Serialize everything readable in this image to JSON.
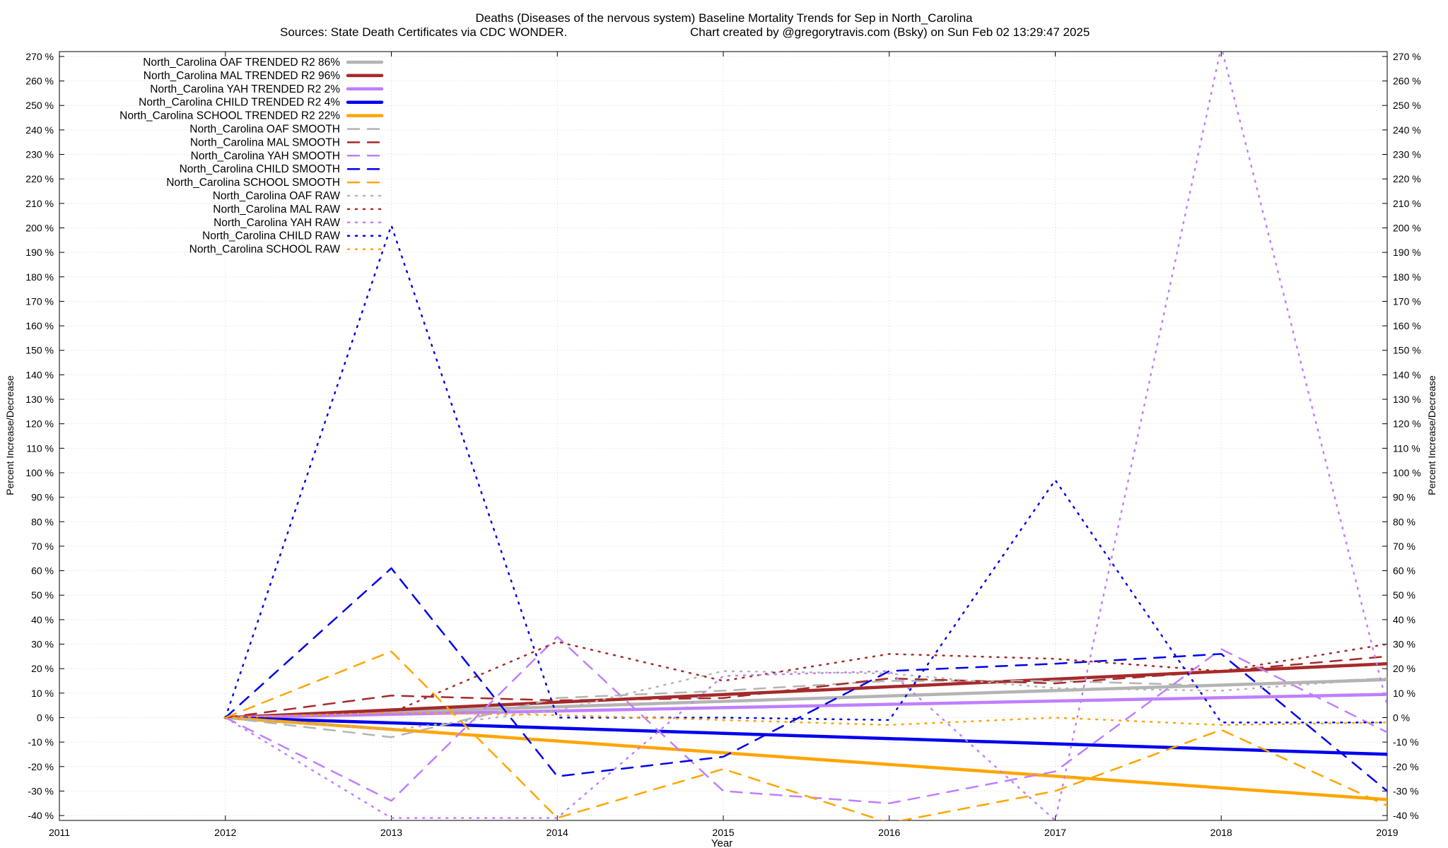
{
  "chart_data": {
    "type": "line",
    "title": "Deaths (Diseases of the nervous system)  Baseline Mortality Trends for Sep in North_Carolina",
    "subtitle_left": "Sources: State Death Certificates via CDC WONDER.",
    "subtitle_right": "Chart created by @gregorytravis.com (Bsky) on Sun Feb 02 13:29:47 2025",
    "xlabel": "Year",
    "ylabel_left": "Percent Increase/Decrease",
    "ylabel_right": "Percent Increase/Decrease",
    "xlim": [
      2011,
      2019
    ],
    "ylim": [
      -42,
      272
    ],
    "x_ticks": [
      2011,
      2012,
      2013,
      2014,
      2015,
      2016,
      2017,
      2018,
      2019
    ],
    "y_ticks": [
      -40,
      -30,
      -20,
      -10,
      0,
      10,
      20,
      30,
      40,
      50,
      60,
      70,
      80,
      90,
      100,
      110,
      120,
      130,
      140,
      150,
      160,
      170,
      180,
      190,
      200,
      210,
      220,
      230,
      240,
      250,
      260,
      270
    ],
    "y_tick_suffix": " %",
    "grid": true,
    "legend_position": "top-left",
    "series": [
      {
        "name": "North_Carolina OAF TRENDED R2  86%",
        "color": "#b4b4b4",
        "style": "solid",
        "x": [
          2012,
          2019
        ],
        "values": [
          0,
          15.5
        ]
      },
      {
        "name": "North_Carolina MAL TRENDED R2  96%",
        "color": "#a52a2a",
        "style": "solid",
        "x": [
          2012,
          2019
        ],
        "values": [
          0,
          22
        ]
      },
      {
        "name": "North_Carolina YAH TRENDED R2   2%",
        "color": "#bf7fff",
        "style": "solid",
        "x": [
          2012,
          2019
        ],
        "values": [
          0,
          9.5
        ]
      },
      {
        "name": "North_Carolina CHILD TRENDED R2   4%",
        "color": "#0000ee",
        "style": "solid",
        "x": [
          2012,
          2019
        ],
        "values": [
          0,
          -15
        ]
      },
      {
        "name": "North_Carolina SCHOOL TRENDED R2  22%",
        "color": "#ffa500",
        "style": "solid",
        "x": [
          2012,
          2019
        ],
        "values": [
          0,
          -33.5
        ]
      },
      {
        "name": "North_Carolina OAF SMOOTH",
        "color": "#b4b4b4",
        "style": "dash",
        "x": [
          2012,
          2013,
          2014,
          2015,
          2016,
          2017,
          2018,
          2019
        ],
        "values": [
          0,
          -8,
          8,
          11,
          15,
          15,
          13,
          16
        ]
      },
      {
        "name": "North_Carolina MAL SMOOTH",
        "color": "#a52a2a",
        "style": "dash",
        "x": [
          2012,
          2013,
          2014,
          2015,
          2016,
          2017,
          2018,
          2019
        ],
        "values": [
          0,
          9,
          7,
          8,
          16,
          14,
          19,
          25
        ]
      },
      {
        "name": "North_Carolina YAH SMOOTH",
        "color": "#bf7fff",
        "style": "dash",
        "x": [
          2012,
          2013,
          2014,
          2015,
          2016,
          2017,
          2018,
          2019
        ],
        "values": [
          0,
          -34,
          33,
          -30,
          -35,
          -22,
          28,
          -6
        ]
      },
      {
        "name": "North_Carolina CHILD SMOOTH",
        "color": "#0000ee",
        "style": "dash",
        "x": [
          2012,
          2013,
          2014,
          2015,
          2016,
          2017,
          2018,
          2019
        ],
        "values": [
          0,
          61,
          -24,
          -16,
          19,
          22,
          26,
          -30
        ]
      },
      {
        "name": "North_Carolina SCHOOL SMOOTH",
        "color": "#ffa500",
        "style": "dash",
        "x": [
          2012,
          2013,
          2014,
          2015,
          2016,
          2017,
          2018,
          2019
        ],
        "values": [
          0,
          27,
          -41,
          -21,
          -43,
          -30,
          -5,
          -36
        ]
      },
      {
        "name": "North_Carolina OAF RAW",
        "color": "#b4b4b4",
        "style": "dot",
        "x": [
          2012,
          2013,
          2014,
          2015,
          2016,
          2017,
          2018,
          2019
        ],
        "values": [
          0,
          -5,
          3,
          19,
          18,
          12,
          11,
          16
        ]
      },
      {
        "name": "North_Carolina MAL RAW",
        "color": "#a52a2a",
        "style": "dot",
        "x": [
          2012,
          2013,
          2014,
          2015,
          2016,
          2017,
          2018,
          2019
        ],
        "values": [
          0,
          2,
          31,
          15,
          26,
          24,
          19,
          30
        ]
      },
      {
        "name": "North_Carolina YAH RAW",
        "color": "#bf7fff",
        "style": "dot",
        "x": [
          2012,
          2013,
          2014,
          2015,
          2016,
          2017,
          2018,
          2019
        ],
        "values": [
          0,
          -41,
          -41,
          17,
          19,
          -42,
          274,
          5
        ]
      },
      {
        "name": "North_Carolina CHILD RAW",
        "color": "#0000ee",
        "style": "dot",
        "x": [
          2012,
          2013,
          2014,
          2015,
          2016,
          2017,
          2018,
          2019
        ],
        "values": [
          0,
          201,
          0,
          0,
          -1,
          97,
          -2,
          -2
        ]
      },
      {
        "name": "North_Carolina SCHOOL RAW",
        "color": "#ffa500",
        "style": "dot",
        "x": [
          2012,
          2013,
          2014,
          2015,
          2016,
          2017,
          2018,
          2019
        ],
        "values": [
          0,
          2,
          1,
          -1,
          -3,
          0,
          -3,
          -2
        ]
      }
    ]
  }
}
